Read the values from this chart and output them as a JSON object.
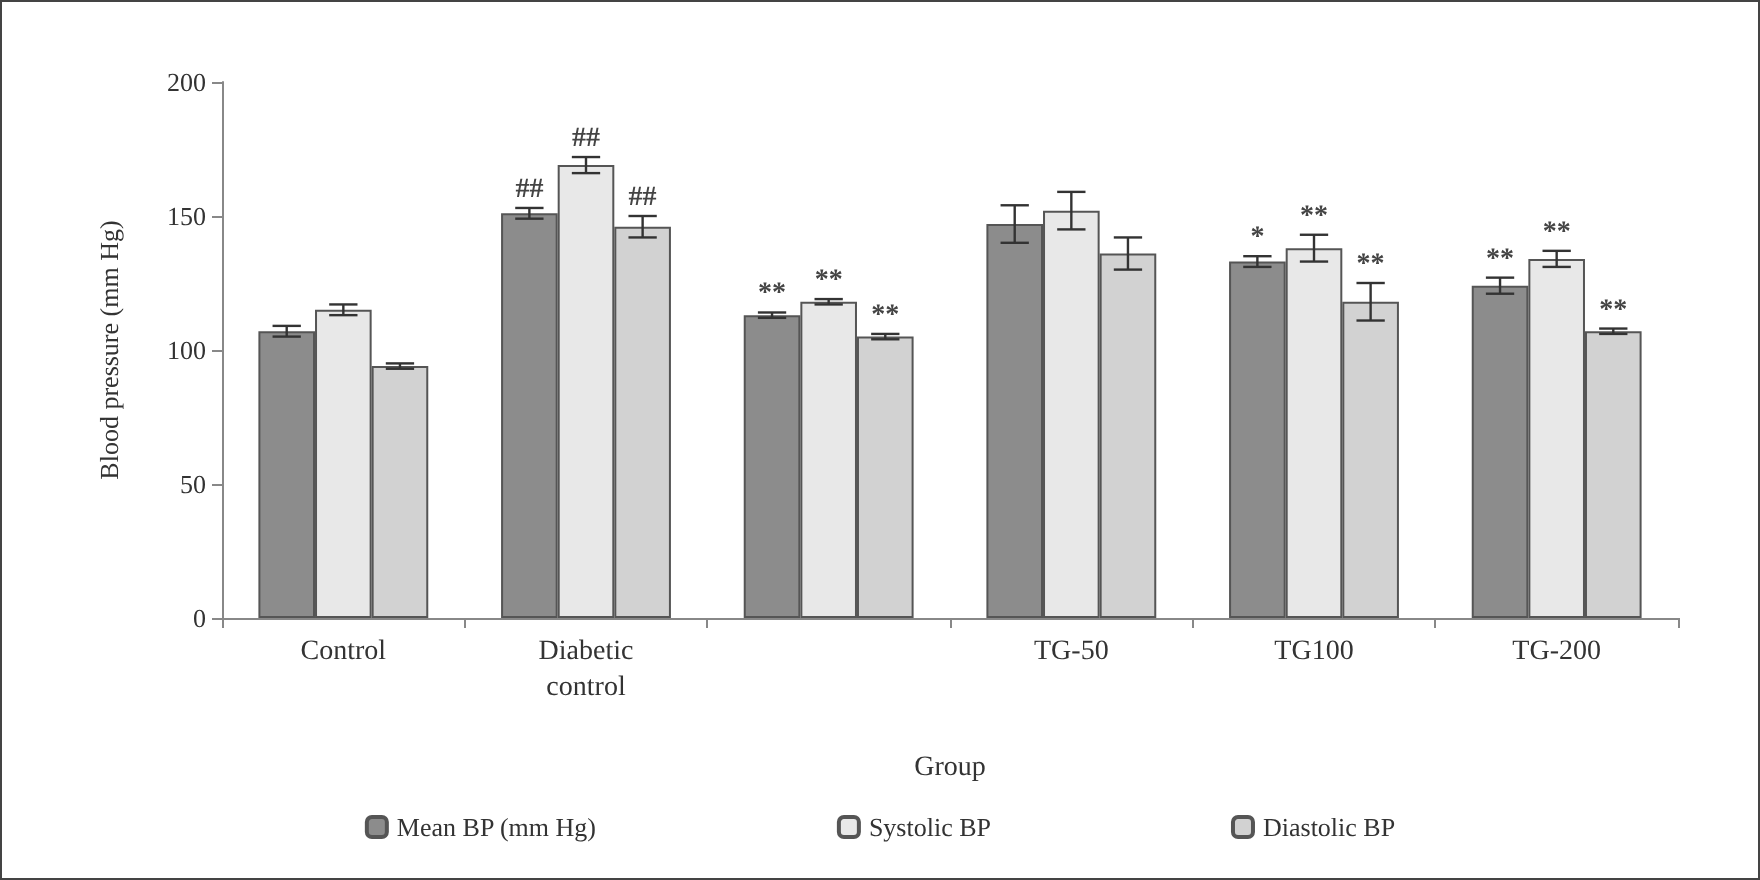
{
  "chart_data": {
    "type": "bar",
    "xlabel": "Group",
    "ylabel": "Blood pressure (mm Hg)",
    "categories": [
      "Control",
      "Diabetic\ncontrol",
      null,
      "TG-50",
      "TG100",
      "TG-200"
    ],
    "series": [
      {
        "name": "Mean BP (mm Hg)",
        "color": "#8c8c8c",
        "values": [
          107,
          151,
          113,
          147,
          133,
          124
        ],
        "errors": [
          2,
          2,
          1,
          7,
          2,
          3
        ],
        "value_labels": [
          null,
          "##",
          "**",
          null,
          "*",
          "**"
        ]
      },
      {
        "name": "Systolic BP",
        "color": "#e8e8e8",
        "values": [
          115,
          169,
          118,
          152,
          138,
          134
        ],
        "errors": [
          2,
          3,
          1,
          7,
          5,
          3
        ],
        "value_labels": [
          null,
          "##",
          "**",
          null,
          "**",
          "**"
        ]
      },
      {
        "name": "Diastolic BP",
        "color": "#d2d2d2",
        "values": [
          94,
          146,
          105,
          136,
          118,
          107
        ],
        "errors": [
          1,
          4,
          1,
          6,
          7,
          1
        ],
        "value_labels": [
          null,
          "##",
          "**",
          null,
          "**",
          "**"
        ]
      }
    ],
    "ylim": [
      0,
      200
    ],
    "yticks": [
      0,
      50,
      100,
      150,
      200
    ],
    "grid": false,
    "legend": "bottom"
  }
}
